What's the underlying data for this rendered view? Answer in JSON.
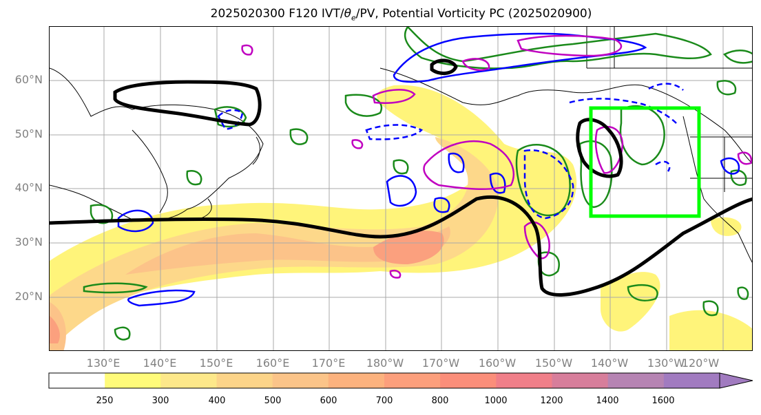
{
  "title": {
    "prefix": "2025020300 F120 IVT/",
    "theta": "θ",
    "theta_sub": "e",
    "suffix": "/PV, Potential Vorticity PC (2025020900)"
  },
  "lat_labels": [
    "60°N",
    "50°N",
    "40°N",
    "30°N",
    "20°N"
  ],
  "lon_labels": [
    "130°E",
    "140°E",
    "150°E",
    "160°E",
    "170°E",
    "180°W",
    "170°W",
    "160°W",
    "150°W",
    "140°W",
    "130°W",
    "120°W"
  ],
  "colorbar": {
    "ticks": [
      "250",
      "300",
      "400",
      "500",
      "600",
      "700",
      "800",
      "1000",
      "1200",
      "1400",
      "1600"
    ],
    "colors": [
      "#ffffff",
      "#fffb7a",
      "#fde88a",
      "#fcd489",
      "#fbc489",
      "#fcb27e",
      "#fc9f7c",
      "#fb8e7a",
      "#f07f89",
      "#d77e9b",
      "#b684b3",
      "#a17bc0"
    ]
  },
  "colors": {
    "ivt_ring_light": "#fff47a",
    "ivt_ring_mid": "#fdd88a",
    "ivt_ring_core": "#fba07e",
    "green_contour": "#1a8a1a",
    "blue_contour": "#0000ff",
    "magenta_contour": "#c000c0",
    "black_theta_line": "#000000",
    "box_highlight": "#00ff00"
  },
  "highlight_box": {
    "lon_min": "140°W",
    "lon_max": "120°W",
    "lat_min": "35°N",
    "lat_max": "55°N"
  }
}
